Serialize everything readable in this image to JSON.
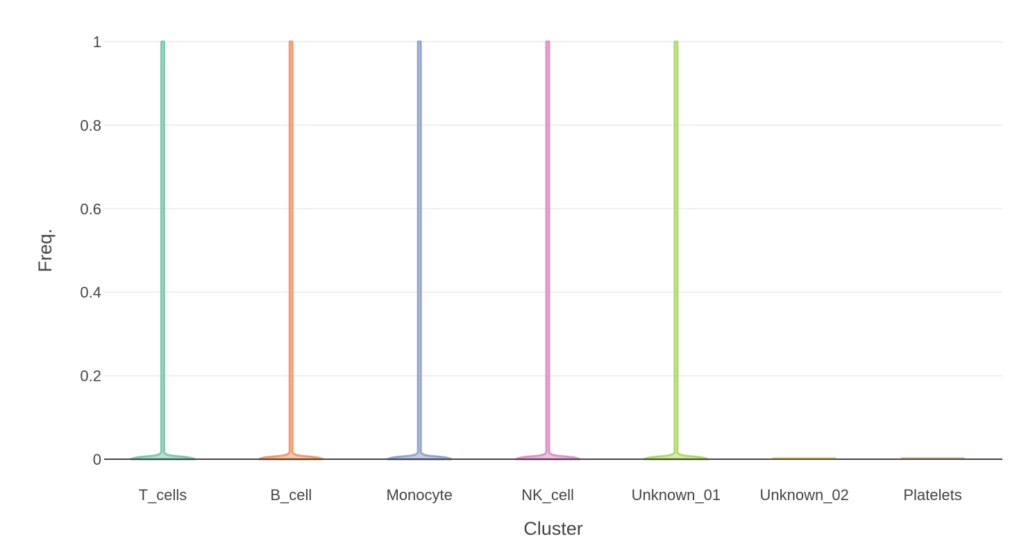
{
  "chart_data": {
    "type": "violin",
    "title": "",
    "xlabel": "Cluster",
    "ylabel": "Freq.",
    "ylim": [
      0,
      1
    ],
    "yticks": [
      0,
      0.2,
      0.4,
      0.6,
      0.8,
      1
    ],
    "ytick_labels": [
      "0",
      "0.2",
      "0.4",
      "0.6",
      "0.8",
      "1"
    ],
    "grid": true,
    "legend": "none",
    "categories": [
      "T_cells",
      "B_cell",
      "Monocyte",
      "NK_cell",
      "Unknown_01",
      "Unknown_02",
      "Platelets"
    ],
    "series": [
      {
        "category": "T_cells",
        "min": 0,
        "max": 1,
        "bulk_max": 0.03,
        "color": "#7fc7af"
      },
      {
        "category": "B_cell",
        "min": 0,
        "max": 1,
        "bulk_max": 0.03,
        "color": "#f09a6d"
      },
      {
        "category": "Monocyte",
        "min": 0,
        "max": 1,
        "bulk_max": 0.03,
        "color": "#95a4cc"
      },
      {
        "category": "NK_cell",
        "min": 0,
        "max": 1,
        "bulk_max": 0.03,
        "color": "#dc92c9"
      },
      {
        "category": "Unknown_01",
        "min": 0,
        "max": 1,
        "bulk_max": 0.03,
        "color": "#b1d86b"
      },
      {
        "category": "Unknown_02",
        "min": 0,
        "max": 0,
        "bulk_max": 0,
        "color": "#fbd94f"
      },
      {
        "category": "Platelets",
        "min": 0,
        "max": 0,
        "bulk_max": 0,
        "color": "#e0c692"
      }
    ]
  }
}
